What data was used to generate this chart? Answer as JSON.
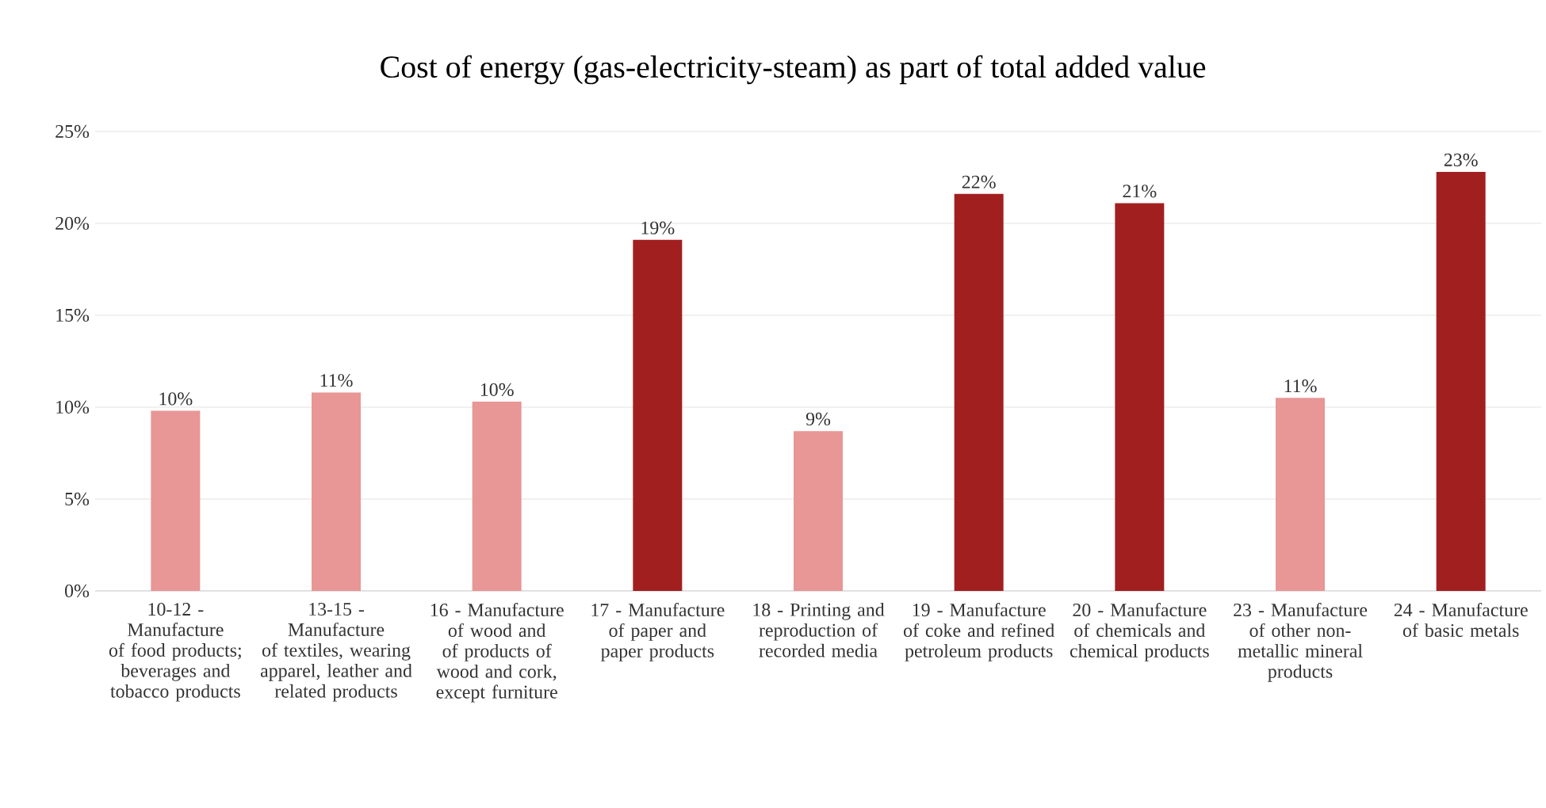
{
  "chart_data": {
    "type": "bar",
    "title": "Cost of energy (gas-electricity-steam) as part of total added value",
    "categories": [
      "10-12 - Manufacture of food products; beverages and tobacco products",
      "13-15 - Manufacture of textiles, wearing apparel, leather and related products",
      "16 - Manufacture of wood and of products of wood and cork, except furniture",
      "17 - Manufacture of paper and paper products",
      "18 - Printing and reproduction of recorded media",
      "19 - Manufacture of coke and refined petroleum products",
      "20 - Manufacture of chemicals and chemical products",
      "23 - Manufacture of other non-metallic mineral products",
      "24 - Manufacture of basic metals"
    ],
    "values": [
      9.8,
      10.8,
      10.3,
      19.1,
      8.7,
      21.6,
      21.1,
      10.5,
      22.8
    ],
    "value_labels": [
      "10%",
      "11%",
      "10%",
      "19%",
      "9%",
      "22%",
      "21%",
      "11%",
      "23%"
    ],
    "colors": [
      "#e89696",
      "#e89696",
      "#e89696",
      "#a21f20",
      "#e89696",
      "#a21f20",
      "#a21f20",
      "#e89696",
      "#a21f20"
    ],
    "ylim": [
      0,
      25
    ],
    "yticks": [
      {
        "value": 0,
        "label": "0%"
      },
      {
        "value": 5,
        "label": "5%"
      },
      {
        "value": 10,
        "label": "10%"
      },
      {
        "value": 15,
        "label": "15%"
      },
      {
        "value": 20,
        "label": "20%"
      },
      {
        "value": 25,
        "label": "25%"
      }
    ],
    "grid": "y"
  }
}
